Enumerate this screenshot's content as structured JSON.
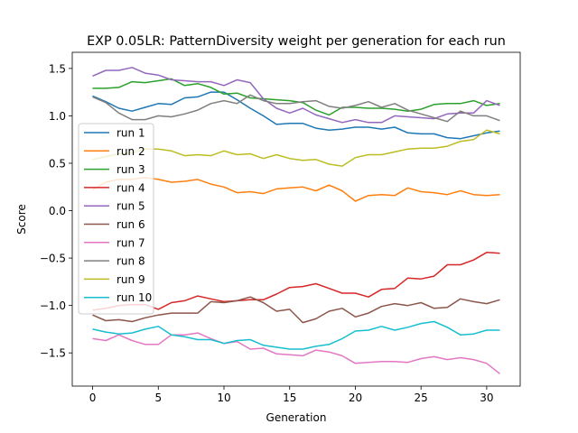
{
  "chart_data": {
    "type": "line",
    "title": "EXP 0.05LR: PatternDiversity weight per generation for each run",
    "xlabel": "Generation",
    "ylabel": "Score",
    "xlim": [
      -1.55,
      32.55
    ],
    "ylim": [
      -1.85,
      1.67
    ],
    "xticks": [
      0,
      5,
      10,
      15,
      20,
      25,
      30
    ],
    "yticks": [
      -1.5,
      -1.0,
      -0.5,
      0.0,
      0.5,
      1.0,
      1.5
    ],
    "xtick_labels": [
      "0",
      "5",
      "10",
      "15",
      "20",
      "25",
      "30"
    ],
    "ytick_labels": [
      "−1.5",
      "−1.0",
      "−0.5",
      "0.0",
      "0.5",
      "1.0",
      "1.5"
    ],
    "legend_position": "center-left",
    "x": [
      0,
      1,
      2,
      3,
      4,
      5,
      6,
      7,
      8,
      9,
      10,
      11,
      12,
      13,
      14,
      15,
      16,
      17,
      18,
      19,
      20,
      21,
      22,
      23,
      24,
      25,
      26,
      27,
      28,
      29,
      30,
      31
    ],
    "series": [
      {
        "name": "run 1",
        "color": "#1f77b4",
        "values": [
          1.21,
          1.15,
          1.08,
          1.05,
          1.09,
          1.13,
          1.12,
          1.19,
          1.2,
          1.25,
          1.25,
          1.17,
          1.08,
          1.0,
          0.91,
          0.92,
          0.92,
          0.87,
          0.85,
          0.86,
          0.88,
          0.88,
          0.86,
          0.88,
          0.82,
          0.81,
          0.81,
          0.77,
          0.76,
          0.79,
          0.82,
          0.84
        ]
      },
      {
        "name": "run 2",
        "color": "#ff7f0e",
        "values": [
          0.22,
          0.3,
          0.33,
          0.33,
          0.35,
          0.33,
          0.3,
          0.31,
          0.33,
          0.28,
          0.25,
          0.19,
          0.2,
          0.18,
          0.23,
          0.24,
          0.25,
          0.21,
          0.27,
          0.21,
          0.1,
          0.16,
          0.17,
          0.16,
          0.24,
          0.2,
          0.19,
          0.17,
          0.21,
          0.17,
          0.16,
          0.17
        ]
      },
      {
        "name": "run 3",
        "color": "#2ca02c",
        "values": [
          1.29,
          1.29,
          1.3,
          1.36,
          1.35,
          1.37,
          1.39,
          1.32,
          1.34,
          1.3,
          1.23,
          1.24,
          1.19,
          1.18,
          1.17,
          1.16,
          1.14,
          1.06,
          1.01,
          1.09,
          1.09,
          1.08,
          1.08,
          1.07,
          1.05,
          1.07,
          1.12,
          1.13,
          1.13,
          1.16,
          1.11,
          1.13
        ]
      },
      {
        "name": "run 4",
        "color": "#d62728",
        "values": [
          -1.05,
          -1.03,
          -1.0,
          -0.99,
          -0.99,
          -1.04,
          -0.97,
          -0.95,
          -0.9,
          -0.93,
          -0.96,
          -0.95,
          -0.94,
          -0.94,
          -0.88,
          -0.81,
          -0.8,
          -0.77,
          -0.82,
          -0.87,
          -0.87,
          -0.91,
          -0.83,
          -0.82,
          -0.71,
          -0.72,
          -0.69,
          -0.57,
          -0.57,
          -0.52,
          -0.44,
          -0.45
        ]
      },
      {
        "name": "run 5",
        "color": "#9467bd",
        "values": [
          1.42,
          1.48,
          1.48,
          1.51,
          1.45,
          1.43,
          1.38,
          1.37,
          1.36,
          1.36,
          1.32,
          1.38,
          1.35,
          1.18,
          1.08,
          1.03,
          1.08,
          1.01,
          0.97,
          0.93,
          0.96,
          0.93,
          0.93,
          1.0,
          0.99,
          0.98,
          0.97,
          1.02,
          1.03,
          1.03,
          1.16,
          1.11
        ]
      },
      {
        "name": "run 6",
        "color": "#8c564b",
        "values": [
          -1.1,
          -1.16,
          -1.15,
          -1.17,
          -1.13,
          -1.1,
          -1.08,
          -1.08,
          -1.08,
          -0.96,
          -0.97,
          -0.95,
          -0.91,
          -0.97,
          -1.06,
          -1.04,
          -1.18,
          -1.14,
          -1.06,
          -1.03,
          -1.12,
          -1.08,
          -1.01,
          -0.98,
          -1.0,
          -0.97,
          -1.03,
          -1.02,
          -0.93,
          -0.96,
          -0.98,
          -0.94
        ]
      },
      {
        "name": "run 7",
        "color": "#e377c2",
        "values": [
          -1.35,
          -1.37,
          -1.31,
          -1.37,
          -1.41,
          -1.41,
          -1.31,
          -1.31,
          -1.29,
          -1.35,
          -1.4,
          -1.38,
          -1.46,
          -1.45,
          -1.51,
          -1.52,
          -1.53,
          -1.47,
          -1.49,
          -1.53,
          -1.61,
          -1.6,
          -1.59,
          -1.59,
          -1.6,
          -1.56,
          -1.54,
          -1.57,
          -1.55,
          -1.57,
          -1.61,
          -1.72
        ]
      },
      {
        "name": "run 8",
        "color": "#7f7f7f",
        "values": [
          1.2,
          1.14,
          1.03,
          0.96,
          0.96,
          1.0,
          0.99,
          1.02,
          1.06,
          1.13,
          1.16,
          1.13,
          1.22,
          1.16,
          1.13,
          1.13,
          1.15,
          1.16,
          1.1,
          1.08,
          1.11,
          1.15,
          1.09,
          1.13,
          1.06,
          1.02,
          0.98,
          0.94,
          1.05,
          1.0,
          1.0,
          0.95
        ]
      },
      {
        "name": "run 9",
        "color": "#bcbd22",
        "values": [
          0.54,
          0.57,
          0.6,
          0.61,
          0.65,
          0.65,
          0.63,
          0.58,
          0.59,
          0.58,
          0.63,
          0.59,
          0.6,
          0.55,
          0.59,
          0.55,
          0.53,
          0.54,
          0.49,
          0.47,
          0.56,
          0.59,
          0.59,
          0.62,
          0.65,
          0.66,
          0.66,
          0.68,
          0.73,
          0.75,
          0.85,
          0.81
        ]
      },
      {
        "name": "run 10",
        "color": "#17becf",
        "values": [
          -1.25,
          -1.28,
          -1.3,
          -1.29,
          -1.25,
          -1.22,
          -1.31,
          -1.33,
          -1.36,
          -1.36,
          -1.4,
          -1.37,
          -1.36,
          -1.42,
          -1.44,
          -1.46,
          -1.46,
          -1.43,
          -1.41,
          -1.35,
          -1.27,
          -1.26,
          -1.22,
          -1.26,
          -1.23,
          -1.19,
          -1.17,
          -1.23,
          -1.31,
          -1.3,
          -1.26,
          -1.26
        ]
      }
    ]
  }
}
